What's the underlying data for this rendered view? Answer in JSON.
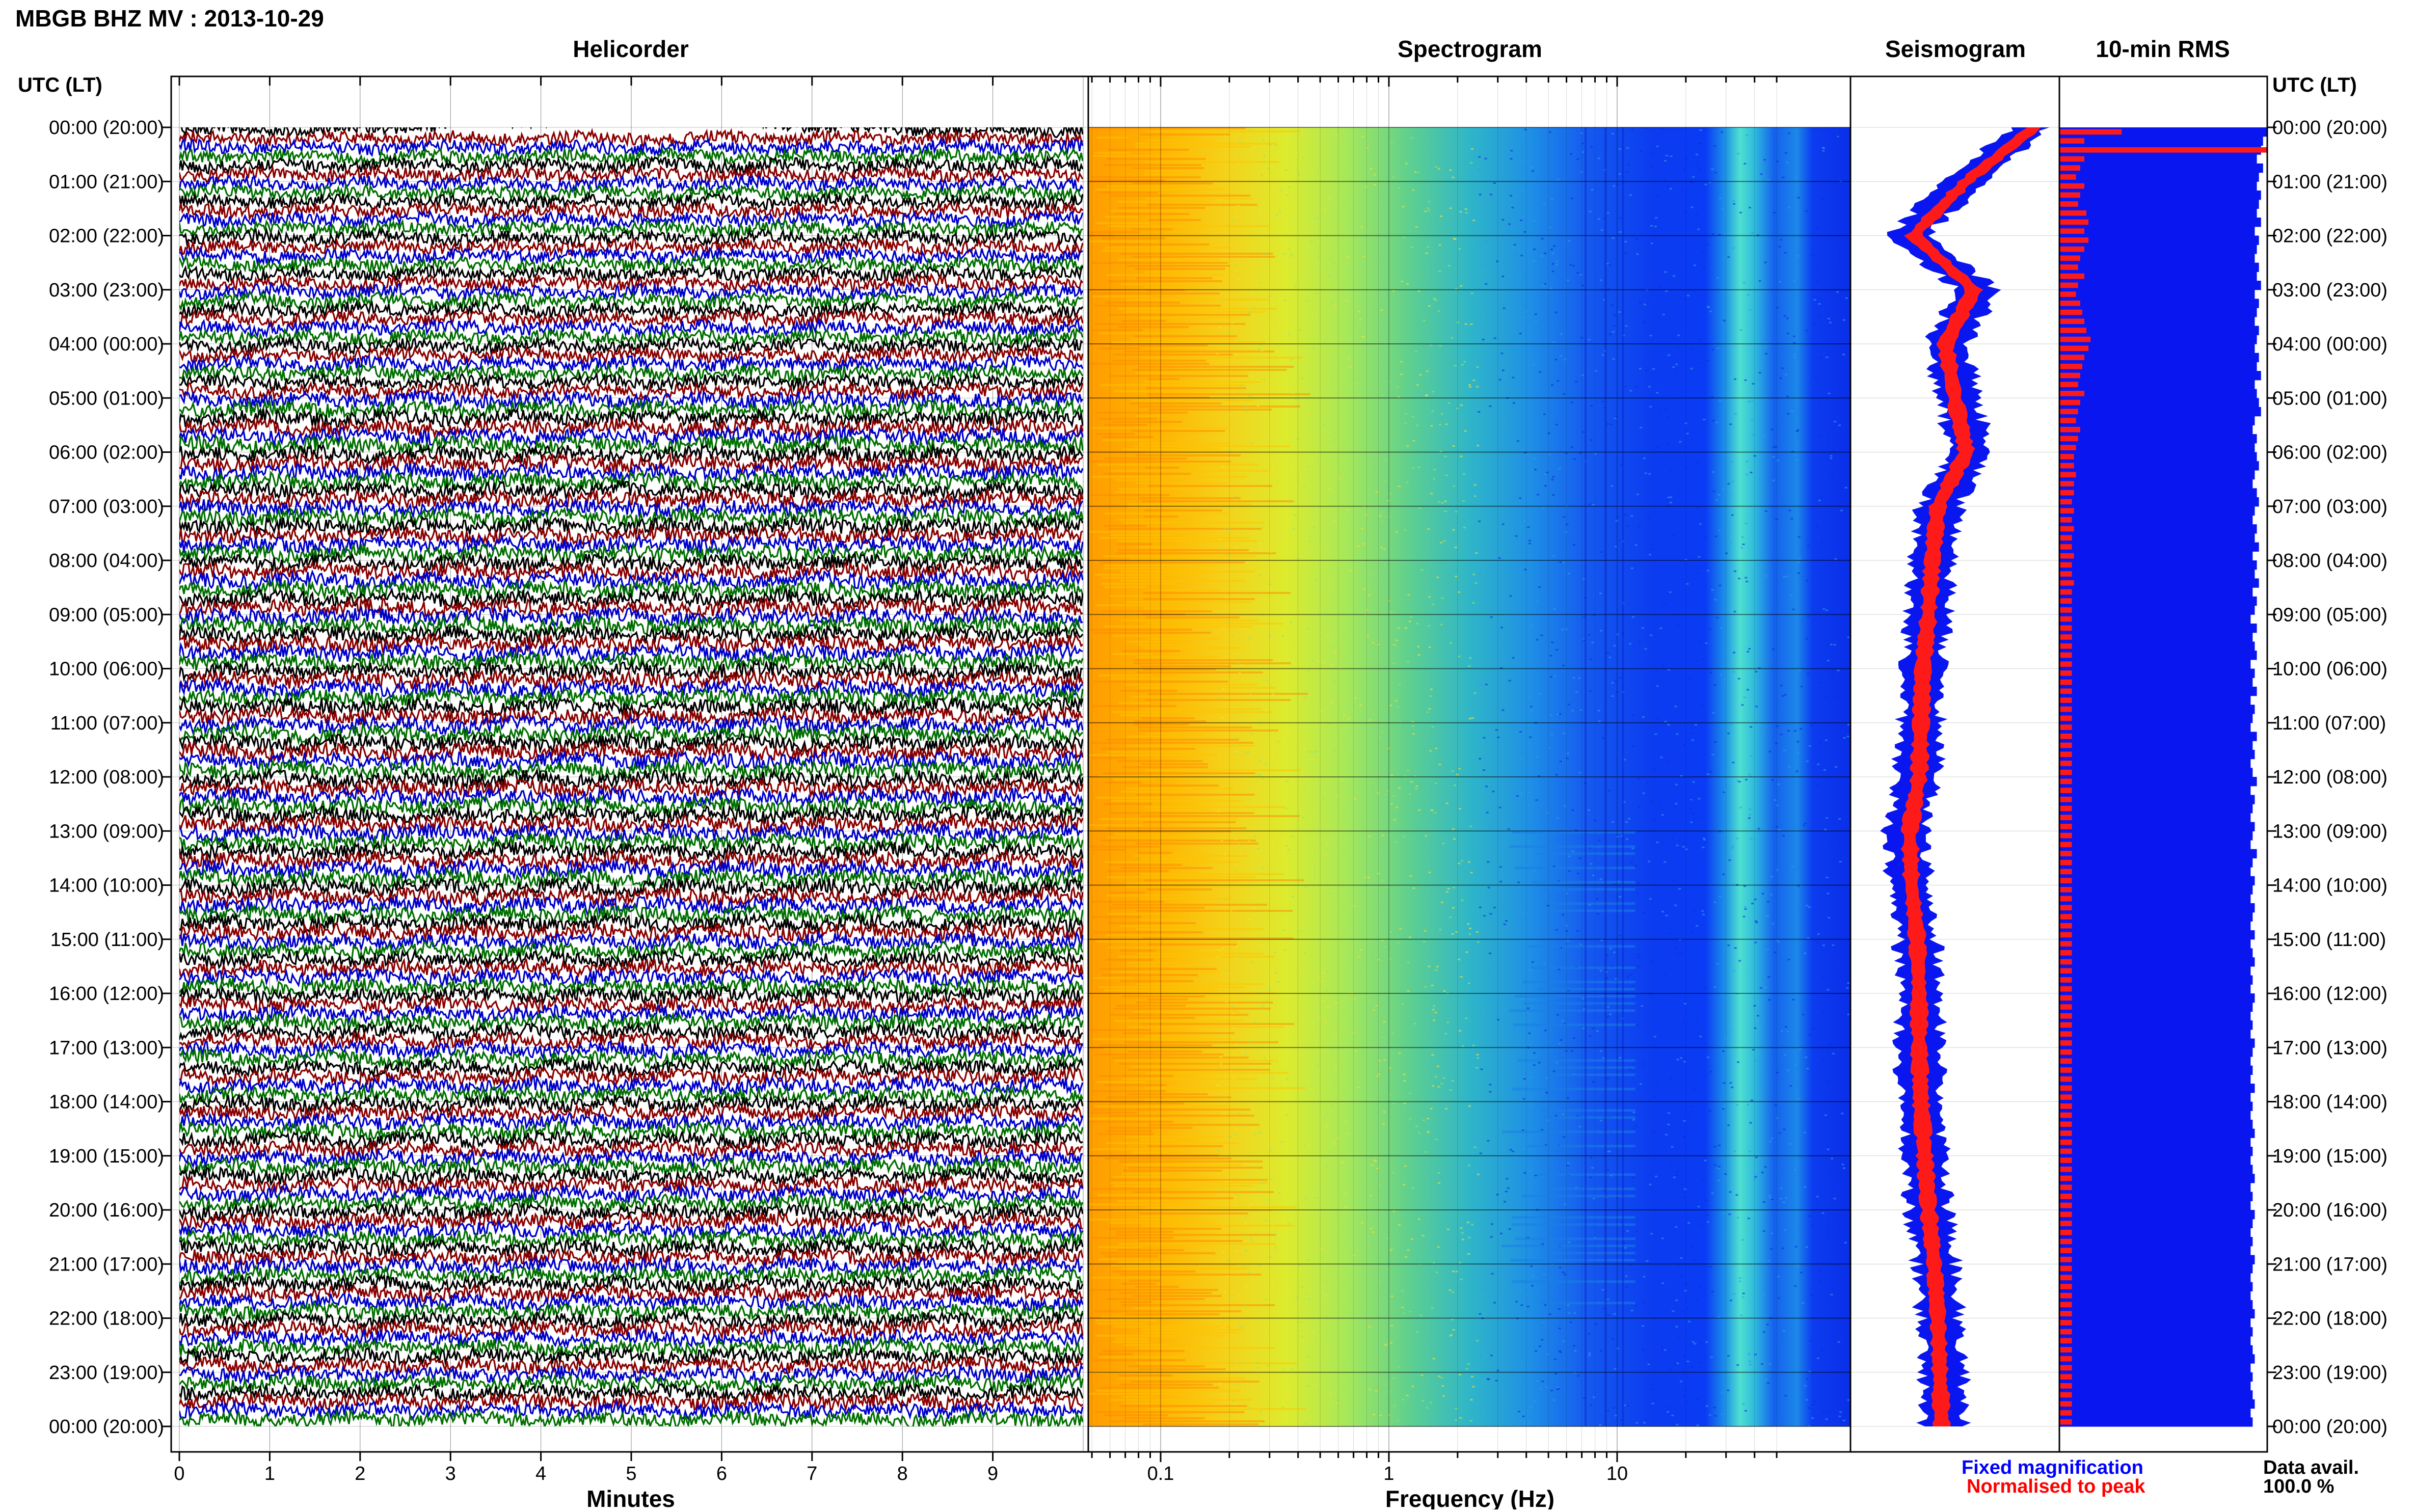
{
  "station_title": "MBGB BHZ MV : 2013-10-29",
  "panels": {
    "helicorder": "Helicorder",
    "spectrogram": "Spectrogram",
    "seismogram": "Seismogram",
    "rms": "10-min RMS"
  },
  "time_axis_label": "UTC (LT)",
  "time_labels": [
    "00:00 (20:00)",
    "01:00 (21:00)",
    "02:00 (22:00)",
    "03:00 (23:00)",
    "04:00 (00:00)",
    "05:00 (01:00)",
    "06:00 (02:00)",
    "07:00 (03:00)",
    "08:00 (04:00)",
    "09:00 (05:00)",
    "10:00 (06:00)",
    "11:00 (07:00)",
    "12:00 (08:00)",
    "13:00 (09:00)",
    "14:00 (10:00)",
    "15:00 (11:00)",
    "16:00 (12:00)",
    "17:00 (13:00)",
    "18:00 (14:00)",
    "19:00 (15:00)",
    "20:00 (16:00)",
    "21:00 (17:00)",
    "22:00 (18:00)",
    "23:00 (19:00)",
    "00:00 (20:00)"
  ],
  "legend": {
    "fixed": "Fixed magnification",
    "normalised": "Normalised to peak",
    "fixed_color": "#0000ff",
    "normalised_color": "#ff0000"
  },
  "data_avail": {
    "label": "Data avail.",
    "value": "100.0 %"
  },
  "chart_data": [
    {
      "type": "line",
      "title": "Helicorder",
      "xlabel": "Minutes",
      "x_ticks": [
        "0",
        "1",
        "2",
        "3",
        "4",
        "5",
        "6",
        "7",
        "8",
        "9"
      ],
      "xlim": [
        0,
        10
      ],
      "trace_count": 144,
      "trace_minutes": 10,
      "trace_colors": [
        "#000000",
        "#8b0000",
        "#0000cd",
        "#007000"
      ]
    },
    {
      "type": "heatmap",
      "title": "Spectrogram",
      "xlabel": "Frequency (Hz)",
      "x_scale": "log",
      "x_ticks": [
        "0.1",
        "1",
        "10"
      ],
      "xlim": [
        0.02,
        50
      ],
      "colormap": "jet",
      "microseism_peak_hz": [
        0.03,
        0.1
      ],
      "energy_band_hz": [
        12,
        16
      ]
    },
    {
      "type": "area",
      "title": "Seismogram",
      "series": [
        {
          "name": "Fixed magnification",
          "values": [
            0.9,
            0.55,
            0.25,
            0.62,
            0.46,
            0.52,
            0.58,
            0.42,
            0.38,
            0.36,
            0.33,
            0.32,
            0.3,
            0.24,
            0.26,
            0.3,
            0.32,
            0.31,
            0.32,
            0.34,
            0.36,
            0.4,
            0.42,
            0.44,
            0.44
          ]
        },
        {
          "name": "Normalised to peak",
          "values": [
            0.92,
            0.56,
            0.28,
            0.6,
            0.45,
            0.5,
            0.56,
            0.41,
            0.38,
            0.36,
            0.33,
            0.32,
            0.31,
            0.26,
            0.27,
            0.3,
            0.31,
            0.31,
            0.32,
            0.34,
            0.36,
            0.39,
            0.41,
            0.42,
            0.43
          ]
        }
      ]
    },
    {
      "type": "bar",
      "title": "10-min RMS",
      "series": [
        {
          "name": "Fixed magnification",
          "values": [
            100,
            98,
            97,
            95,
            98,
            96,
            95,
            97,
            96,
            95,
            97,
            94,
            96,
            95,
            94,
            96,
            95,
            97,
            94,
            96,
            95,
            94,
            96,
            95,
            94,
            96,
            95,
            97,
            94,
            95,
            96,
            97,
            94,
            93,
            95,
            94,
            95,
            96,
            94,
            93,
            95,
            96,
            94,
            93,
            95,
            94,
            96,
            93,
            95,
            94,
            96,
            93,
            95,
            94,
            92,
            95,
            93,
            94,
            95,
            92,
            94,
            93,
            95,
            92,
            94,
            93,
            92,
            95,
            93,
            94,
            92,
            93,
            95,
            92,
            94,
            93,
            92,
            94,
            93,
            92,
            95,
            93,
            92,
            94,
            93,
            92,
            94,
            93,
            92,
            94,
            92,
            93,
            94,
            92,
            93,
            92,
            94,
            93,
            92,
            93,
            92,
            94,
            93,
            92,
            93,
            92,
            94,
            92,
            93,
            92,
            93,
            94,
            92,
            93,
            92,
            93,
            94,
            92,
            93,
            92,
            94,
            93,
            92,
            93,
            92,
            94,
            93,
            92,
            93,
            92,
            93,
            94,
            92,
            93,
            92,
            93,
            94,
            92,
            93,
            92,
            93,
            94,
            92,
            93
          ]
        },
        {
          "name": "Normalised to peak",
          "values": [
            30,
            12,
            100,
            12,
            10,
            8,
            12,
            10,
            9,
            13,
            14,
            12,
            14,
            12,
            10,
            9,
            12,
            9,
            8,
            10,
            11,
            12,
            13,
            15,
            14,
            12,
            11,
            10,
            9,
            12,
            10,
            9,
            8,
            10,
            9,
            8,
            7,
            7,
            8,
            7,
            7,
            6,
            7,
            6,
            7,
            6,
            6,
            7,
            6,
            6,
            7,
            6,
            6,
            6,
            6,
            6,
            6,
            6,
            6,
            6,
            6,
            6,
            6,
            6,
            6,
            6,
            6,
            6,
            6,
            6,
            6,
            6,
            6,
            6,
            6,
            6,
            6,
            6,
            6,
            6,
            6,
            6,
            6,
            6,
            6,
            6,
            6,
            6,
            6,
            6,
            6,
            6,
            6,
            6,
            6,
            6,
            6,
            6,
            6,
            6,
            6,
            6,
            6,
            6,
            6,
            6,
            6,
            6,
            6,
            6,
            6,
            6,
            6,
            6,
            6,
            6,
            6,
            6,
            6,
            6,
            6,
            6,
            6,
            6,
            6,
            6,
            6,
            6,
            6,
            6,
            6,
            6,
            6,
            6,
            6,
            6,
            6,
            6,
            6,
            6,
            6,
            6,
            6,
            6
          ]
        }
      ]
    }
  ]
}
